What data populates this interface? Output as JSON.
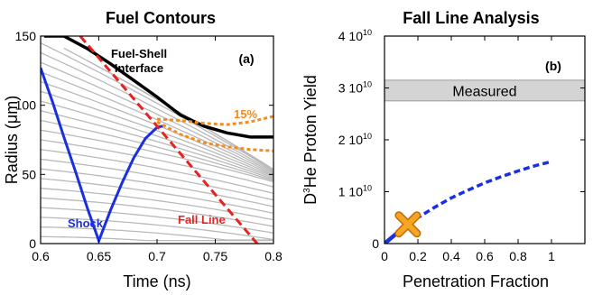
{
  "chart_data": [
    {
      "type": "line",
      "title": "Fuel Contours",
      "panel_label": "(a)",
      "xlabel": "Time (ns)",
      "ylabel_main": "Radius (",
      "ylabel_mu": "μ",
      "ylabel_tail": "m)",
      "xlim": [
        0.6,
        0.8
      ],
      "ylim": [
        0,
        150
      ],
      "x_ticks": [
        "0.6",
        "0.65",
        "0.7",
        "0.75",
        "0.8"
      ],
      "y_ticks": [
        "0",
        "50",
        "100",
        "150"
      ],
      "grid": false,
      "annotations": {
        "interface_line1": "Fuel-Shell",
        "interface_line2": "Interface",
        "percent": "15%",
        "shock": "Shock",
        "fall_line": "Fall Line"
      },
      "series": [
        {
          "role": "fuel-shell-interface",
          "color": "#000000",
          "x": [
            0.603,
            0.62,
            0.64,
            0.66,
            0.68,
            0.7,
            0.72,
            0.74,
            0.76,
            0.78,
            0.8
          ],
          "y": [
            150,
            150,
            141,
            130,
            118,
            106,
            93,
            85,
            80,
            77,
            77
          ]
        },
        {
          "role": "shock",
          "color": "#1a2fe0",
          "x": [
            0.6,
            0.61,
            0.62,
            0.63,
            0.64,
            0.65,
            0.66,
            0.67,
            0.68,
            0.69,
            0.7,
            0.705
          ],
          "y": [
            127,
            103,
            77,
            52,
            26,
            2,
            24,
            44,
            62,
            76,
            84,
            85
          ]
        },
        {
          "role": "fall-line",
          "color": "#e8221f",
          "x": [
            0.634,
            0.786
          ],
          "y": [
            150,
            0
          ]
        },
        {
          "role": "15-percent-upper",
          "color": "#f58a1f",
          "x": [
            0.7,
            0.72,
            0.74,
            0.76,
            0.78,
            0.8
          ],
          "y": [
            90,
            89,
            87,
            86,
            88,
            92
          ]
        },
        {
          "role": "15-percent-lower",
          "color": "#f58a1f",
          "x": [
            0.7,
            0.72,
            0.74,
            0.76,
            0.78,
            0.8
          ],
          "y": [
            88,
            79,
            73,
            70,
            68,
            67
          ]
        }
      ],
      "contours": {
        "color": "#b9b9b9",
        "start_y": [
          5,
          12,
          19,
          26,
          33,
          40,
          47,
          54,
          61,
          68,
          75,
          82,
          89,
          96,
          103,
          110,
          117,
          124,
          131,
          138,
          145
        ],
        "extra_upper_y": [
          150,
          150,
          150,
          150,
          150,
          150,
          150
        ],
        "extra_upper_x0": [
          0.62,
          0.64,
          0.66,
          0.68,
          0.7,
          0.72,
          0.74
        ]
      }
    },
    {
      "type": "line",
      "title": "Fall Line Analysis",
      "panel_label": "(b)",
      "xlabel": "Penetration Fraction",
      "ylabel_pre": "D",
      "ylabel_sup": "3",
      "ylabel_post": "He Proton Yield",
      "xlim": [
        0,
        1.2
      ],
      "ylim": [
        0,
        40000000000.0
      ],
      "x_ticks": [
        "0",
        "0.2",
        "0.4",
        "0.6",
        "0.8",
        "1"
      ],
      "y_ticks": [
        {
          "base": "0",
          "exp": ""
        },
        {
          "base": "1 10",
          "exp": "10"
        },
        {
          "base": "2 10",
          "exp": "10"
        },
        {
          "base": "3 10",
          "exp": "10"
        },
        {
          "base": "4 10",
          "exp": "10"
        }
      ],
      "grid": false,
      "measured": {
        "label": "Measured",
        "low": 27500000000.0,
        "high": 31500000000.0,
        "color": "#d4d4d4"
      },
      "marker": {
        "x": 0.14,
        "y": 3700000000.0,
        "color": "#f5a623"
      },
      "series": [
        {
          "role": "fall-line-yield",
          "color": "#1a2fe0",
          "x": [
            0,
            0.1,
            0.2,
            0.3,
            0.4,
            0.5,
            0.6,
            0.7,
            0.8,
            0.9,
            1.0
          ],
          "y": [
            0,
            2700000000.0,
            5000000000.0,
            7000000000.0,
            8800000000.0,
            10300000000.0,
            11700000000.0,
            12900000000.0,
            14000000000.0,
            15000000000.0,
            15800000000.0
          ]
        }
      ]
    }
  ]
}
